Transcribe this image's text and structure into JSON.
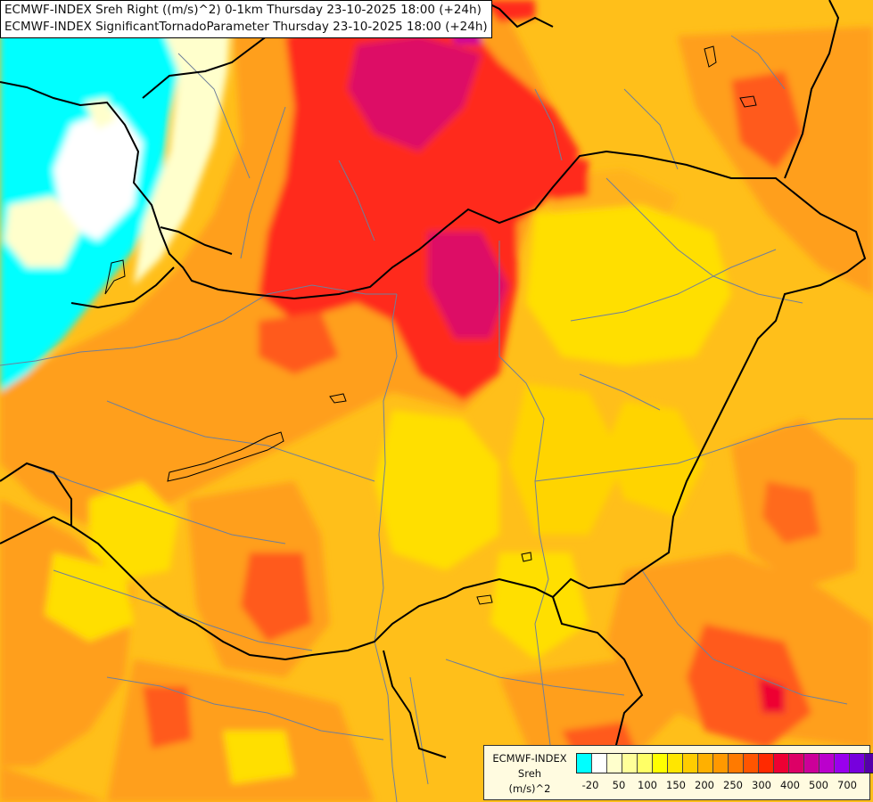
{
  "header": {
    "line1": "ECMWF-INDEX Sreh Right ((m/s)^2) 0-1km Thursday 23-10-2025 18:00 (+24h)",
    "line2": "ECMWF-INDEX SignificantTornadoParameter Thursday 23-10-2025 18:00 (+24h)"
  },
  "legend": {
    "line1": "ECMWF-INDEX",
    "line2": "Sreh",
    "line3": "(m/s)^2",
    "colors": [
      "#00ffff",
      "#ffffff",
      "#ffffcc",
      "#ffff99",
      "#ffff66",
      "#ffff00",
      "#ffe600",
      "#ffcc00",
      "#ffb000",
      "#ff9900",
      "#ff7a00",
      "#ff5500",
      "#ff2a00",
      "#ee0033",
      "#dd0066",
      "#cc0099",
      "#bb00cc",
      "#9900ee",
      "#7700dd",
      "#5500aa",
      "#220077"
    ],
    "ticks": [
      "-20",
      "50",
      "100",
      "150",
      "200",
      "250",
      "300",
      "400",
      "500",
      "700"
    ]
  },
  "colors": {
    "cyan": "#00ffff",
    "pale": "#ffffcc",
    "yellow": "#ffdf00",
    "orange": "#ff9f1a",
    "red": "#ff2a1a",
    "magenta": "#dd1066",
    "border": "#000000",
    "rivers": "#6f7f9a"
  }
}
